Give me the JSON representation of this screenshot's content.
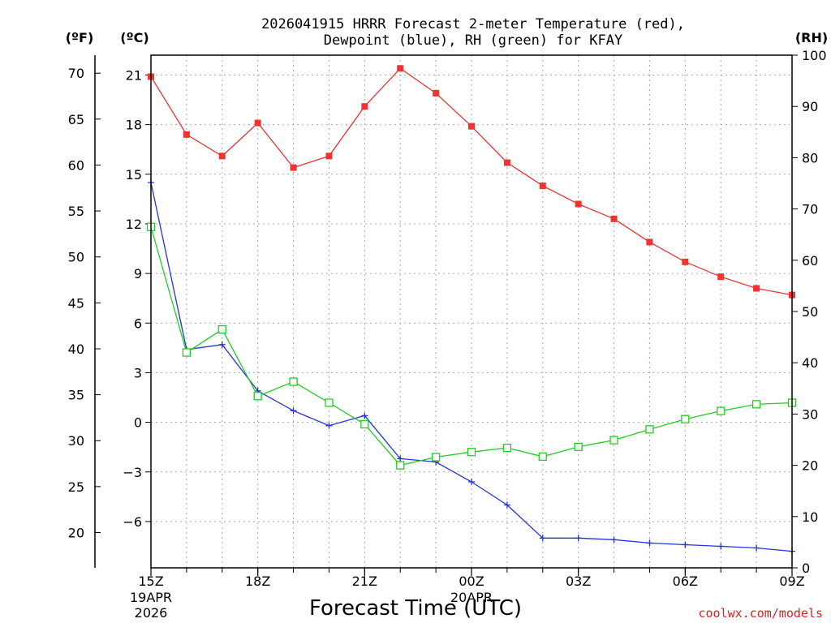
{
  "chart_data": {
    "type": "line",
    "title_line1": "2026041915 HRRR Forecast 2-meter Temperature (red),",
    "title_line2": "Dewpoint (blue), RH (green) for KFAY",
    "xlabel": "Forecast Time (UTC)",
    "credit": "coolwx.com/models",
    "unit_left_f": "(ºF)",
    "unit_left_c": "(ºC)",
    "unit_right": "(RH)",
    "x_hours": [
      0,
      1,
      2,
      3,
      4,
      5,
      6,
      7,
      8,
      9,
      10,
      11,
      12,
      13,
      14,
      15,
      16,
      17,
      18
    ],
    "x_ticks": [
      {
        "hour": 0,
        "label": "15Z",
        "sub1": "19APR",
        "sub2": "2026"
      },
      {
        "hour": 3,
        "label": "18Z",
        "sub1": "",
        "sub2": ""
      },
      {
        "hour": 6,
        "label": "21Z",
        "sub1": "",
        "sub2": ""
      },
      {
        "hour": 9,
        "label": "00Z",
        "sub1": "20APR",
        "sub2": ""
      },
      {
        "hour": 12,
        "label": "03Z",
        "sub1": "",
        "sub2": ""
      },
      {
        "hour": 15,
        "label": "06Z",
        "sub1": "",
        "sub2": ""
      },
      {
        "hour": 18,
        "label": "09Z",
        "sub1": "",
        "sub2": ""
      }
    ],
    "celsius_axis": {
      "range": [
        -8.8,
        22.2
      ],
      "ticks": [
        21,
        18,
        15,
        12,
        9,
        6,
        3,
        0,
        -3,
        -6
      ],
      "tick_labels": [
        "21",
        "18",
        "15",
        "12",
        "9",
        "6",
        "3",
        "0",
        "−3",
        "−6"
      ]
    },
    "fahrenheit_axis": {
      "ticks": [
        70,
        65,
        60,
        55,
        50,
        45,
        40,
        35,
        30,
        25,
        20
      ]
    },
    "rh_axis": {
      "range": [
        0,
        100
      ],
      "ticks": [
        0,
        10,
        20,
        30,
        40,
        50,
        60,
        70,
        80,
        90,
        100
      ]
    },
    "series": [
      {
        "name": "Temperature",
        "color": "#ee3333",
        "marker": "filled-square",
        "axis": "celsius",
        "values": [
          20.9,
          17.4,
          16.1,
          18.1,
          15.4,
          16.1,
          19.1,
          21.4,
          19.9,
          17.9,
          15.7,
          14.3,
          13.2,
          12.3,
          10.9,
          9.7,
          8.8,
          8.1,
          7.7
        ]
      },
      {
        "name": "Dewpoint",
        "color": "#2233dd",
        "marker": "plus",
        "axis": "celsius",
        "values": [
          14.5,
          4.4,
          4.7,
          1.9,
          0.7,
          -0.2,
          0.4,
          -2.2,
          -2.4,
          -3.6,
          -5.0,
          -7.0,
          -7.0,
          -7.1,
          -7.3,
          -7.4,
          -7.5,
          -7.6,
          -7.8
        ]
      },
      {
        "name": "RH",
        "color": "#22cc22",
        "marker": "open-square",
        "axis": "rh",
        "values": [
          66.5,
          42.0,
          46.5,
          33.5,
          36.3,
          32.2,
          28.0,
          20.0,
          21.6,
          22.6,
          23.4,
          21.7,
          23.6,
          24.9,
          27.0,
          29.0,
          30.6,
          31.9,
          32.2
        ]
      }
    ]
  }
}
